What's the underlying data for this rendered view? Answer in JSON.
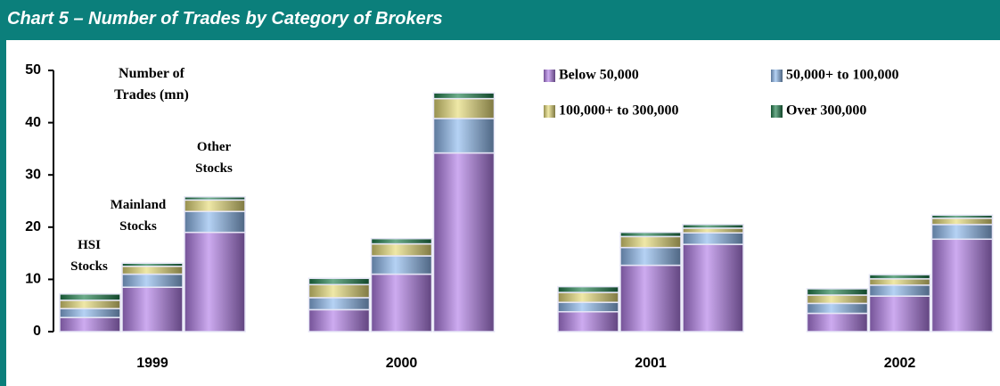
{
  "chart_data": {
    "type": "grouped_stacked_bar",
    "title": "Chart 5 – Number of Trades by Category of Brokers",
    "y_label": "Number of Trades (mn)",
    "categories": [
      "1999",
      "2000",
      "2001",
      "2002"
    ],
    "stack_labels": [
      "HSI Stocks",
      "Mainland Stocks",
      "Other Stocks"
    ],
    "ylim": [
      0,
      50
    ],
    "yticks": [
      0,
      10,
      20,
      30,
      40,
      50
    ],
    "series": [
      {
        "name": "Below 50,000",
        "color": "#b27ee8",
        "values": [
          [
            2.7,
            8.5,
            19.0
          ],
          [
            4.2,
            11.0,
            34.2
          ],
          [
            3.8,
            12.7,
            16.7
          ],
          [
            3.5,
            6.8,
            17.7
          ]
        ]
      },
      {
        "name": "50,000+ to 100,000",
        "color": "#8db9ee",
        "values": [
          [
            1.7,
            2.5,
            4.0
          ],
          [
            2.3,
            3.5,
            6.6
          ],
          [
            1.8,
            3.4,
            2.2
          ],
          [
            1.9,
            2.1,
            2.8
          ]
        ]
      },
      {
        "name": "100,000+ to 300,000",
        "color": "#e6dc78",
        "values": [
          [
            1.6,
            1.5,
            2.2
          ],
          [
            2.5,
            2.3,
            3.8
          ],
          [
            1.9,
            2.1,
            0.9
          ],
          [
            1.6,
            1.2,
            1.2
          ]
        ]
      },
      {
        "name": "Over 300,000",
        "color": "#1f7f4c",
        "values": [
          [
            1.2,
            0.6,
            0.6
          ],
          [
            1.2,
            1.0,
            1.1
          ],
          [
            1.1,
            0.8,
            0.7
          ],
          [
            1.2,
            0.8,
            0.6
          ]
        ]
      }
    ]
  }
}
